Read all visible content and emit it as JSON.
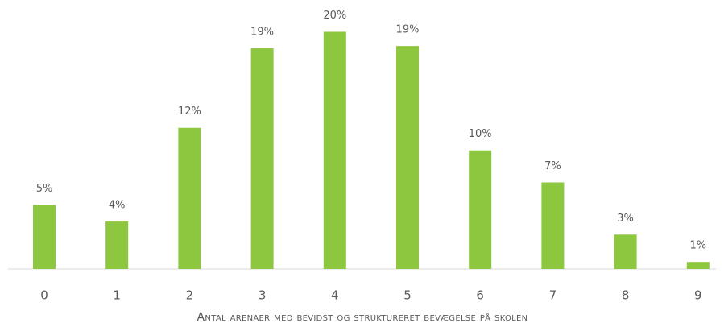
{
  "chart_data": {
    "type": "bar",
    "x_label": "Antal arenaer med bevidst og struktureret bevægelse på skolen",
    "categories": [
      "0",
      "1",
      "2",
      "3",
      "4",
      "5",
      "6",
      "7",
      "8",
      "9"
    ],
    "values": [
      5.4,
      4.0,
      11.9,
      18.6,
      20.0,
      18.8,
      10.0,
      7.3,
      2.9,
      0.6
    ],
    "value_labels": [
      "5%",
      "4%",
      "12%",
      "19%",
      "20%",
      "19%",
      "10%",
      "7%",
      "3%",
      "1%"
    ],
    "color": "#8dc63f",
    "ylim": [
      0,
      22
    ]
  }
}
